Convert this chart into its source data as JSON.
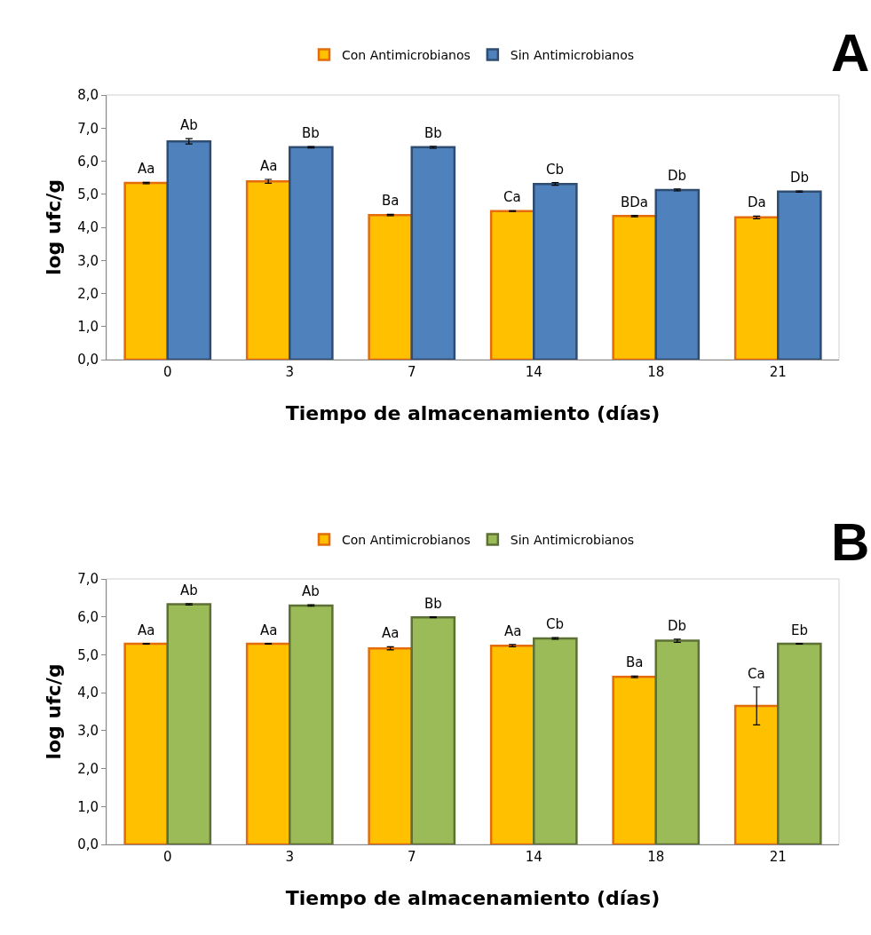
{
  "chart_data": [
    {
      "type": "bar",
      "title": "A",
      "xlabel": "Tiempo de almacenamiento (días)",
      "ylabel": "log ufc/g",
      "categories": [
        "0",
        "3",
        "7",
        "14",
        "18",
        "21"
      ],
      "ylim": [
        0,
        8
      ],
      "yticks": [
        {
          "value": 0,
          "label": "0,0"
        },
        {
          "value": 1,
          "label": "1,0"
        },
        {
          "value": 2,
          "label": "2,0"
        },
        {
          "value": 3,
          "label": "3,0"
        },
        {
          "value": 4,
          "label": "4,0"
        },
        {
          "value": 5,
          "label": "5,0"
        },
        {
          "value": 6,
          "label": "6,0"
        },
        {
          "value": 7,
          "label": "7,0"
        },
        {
          "value": 8,
          "label": "8,0"
        }
      ],
      "legend": "top",
      "grid": false,
      "series": [
        {
          "name": "Con Antimicrobianos",
          "color": "#ffc000",
          "values": [
            5.34,
            5.39,
            4.37,
            4.49,
            4.34,
            4.3
          ],
          "errors": [
            0.02,
            0.06,
            0.02,
            0.01,
            0.02,
            0.04
          ],
          "value_labels": [
            "Aa",
            "Aa",
            "Ba",
            "Ca",
            "BDa",
            "Da"
          ]
        },
        {
          "name": "Sin Antimicrobianos",
          "color": "#4f81bd",
          "values": [
            6.6,
            6.42,
            6.42,
            5.31,
            5.13,
            5.08
          ],
          "errors": [
            0.08,
            0.02,
            0.03,
            0.04,
            0.03,
            0.02
          ],
          "value_labels": [
            "Ab",
            "Bb",
            "Bb",
            "Cb",
            "Db",
            "Db"
          ]
        }
      ]
    },
    {
      "type": "bar",
      "title": "B",
      "xlabel": "Tiempo de almacenamiento (días)",
      "ylabel": "log ufc/g",
      "categories": [
        "0",
        "3",
        "7",
        "14",
        "18",
        "21"
      ],
      "ylim": [
        0,
        7
      ],
      "yticks": [
        {
          "value": 0,
          "label": "0,0"
        },
        {
          "value": 1,
          "label": "1,0"
        },
        {
          "value": 2,
          "label": "2,0"
        },
        {
          "value": 3,
          "label": "3,0"
        },
        {
          "value": 4,
          "label": "4,0"
        },
        {
          "value": 5,
          "label": "5,0"
        },
        {
          "value": 6,
          "label": "6,0"
        },
        {
          "value": 7,
          "label": "7,0"
        }
      ],
      "legend": "top",
      "grid": false,
      "series": [
        {
          "name": "Con Antimicrobianos",
          "color": "#ffc000",
          "values": [
            5.29,
            5.29,
            5.17,
            5.24,
            4.42,
            3.65
          ],
          "errors": [
            0.01,
            0.01,
            0.04,
            0.03,
            0.02,
            0.5
          ],
          "value_labels": [
            "Aa",
            "Aa",
            "Aa",
            "Aa",
            "Ba",
            "Ca"
          ]
        },
        {
          "name": "Sin Antimicrobianos",
          "color": "#9bbb59",
          "values": [
            6.33,
            6.3,
            5.99,
            5.43,
            5.37,
            5.29
          ],
          "errors": [
            0.02,
            0.02,
            0.01,
            0.02,
            0.04,
            0.01
          ],
          "value_labels": [
            "Ab",
            "Ab",
            "Bb",
            "Cb",
            "Db",
            "Eb"
          ]
        }
      ]
    }
  ]
}
